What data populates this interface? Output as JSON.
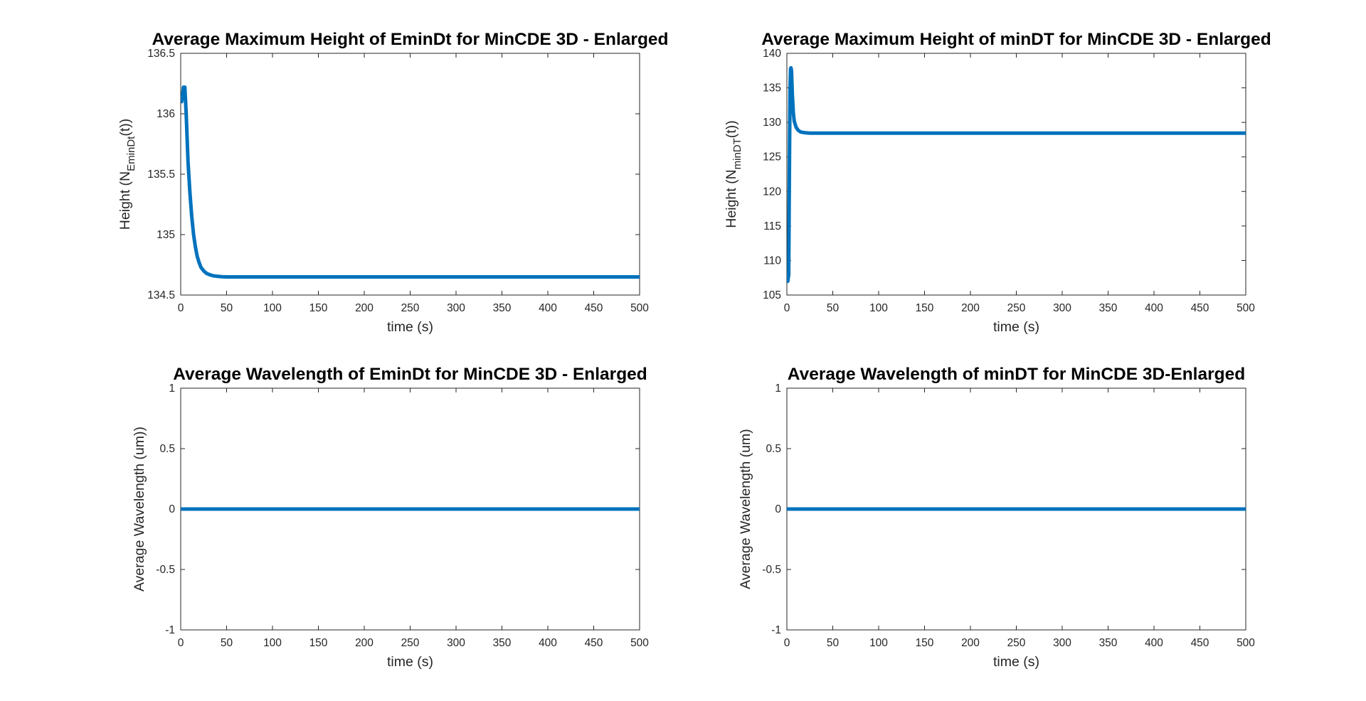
{
  "chart_data": [
    {
      "type": "line",
      "title": "Average Maximum Height of EminDt for MinCDE 3D - Enlarged",
      "xlabel": "time (s)",
      "ylabel": {
        "main": "Height (N",
        "sub": "EminDt",
        "tail": "(t))"
      },
      "xlim": [
        0,
        500
      ],
      "ylim": [
        134.5,
        136.5
      ],
      "xticks": [
        0,
        50,
        100,
        150,
        200,
        250,
        300,
        350,
        400,
        450,
        500
      ],
      "yticks": [
        134.5,
        135,
        135.5,
        136,
        136.5
      ],
      "line_color": "#0072BD",
      "series": [
        {
          "x": [
            0,
            1,
            2,
            3,
            4,
            4.5,
            5,
            6,
            7,
            8,
            10,
            12,
            14,
            16,
            18,
            20,
            22,
            25,
            28,
            31,
            35,
            40,
            45,
            50,
            60,
            80,
            100,
            150,
            200,
            300,
            400,
            500
          ],
          "values": [
            136.15,
            136.1,
            136.15,
            136.22,
            136.2,
            136.22,
            136.15,
            136.0,
            135.8,
            135.6,
            135.35,
            135.15,
            135.0,
            134.9,
            134.82,
            134.77,
            134.73,
            134.7,
            134.68,
            134.67,
            134.66,
            134.655,
            134.652,
            134.65,
            134.65,
            134.65,
            134.65,
            134.65,
            134.65,
            134.65,
            134.65,
            134.65
          ]
        }
      ]
    },
    {
      "type": "line",
      "title": "Average Maximum Height of minDT for MinCDE 3D - Enlarged",
      "xlabel": "time (s)",
      "ylabel": {
        "main": "Height (N",
        "sub": "minDT",
        "tail": "(t))"
      },
      "xlim": [
        0,
        500
      ],
      "ylim": [
        105,
        140
      ],
      "xticks": [
        0,
        50,
        100,
        150,
        200,
        250,
        300,
        350,
        400,
        450,
        500
      ],
      "yticks": [
        105,
        110,
        115,
        120,
        125,
        130,
        135,
        140
      ],
      "line_color": "#0072BD",
      "series": [
        {
          "x": [
            0,
            1,
            2,
            2.5,
            3,
            3.5,
            4,
            4.5,
            5,
            6,
            7,
            8,
            10,
            12,
            15,
            20,
            25,
            30,
            50,
            100,
            200,
            300,
            400,
            500
          ],
          "values": [
            107,
            107,
            108,
            118,
            128,
            135,
            137.8,
            137.9,
            137.5,
            134,
            131.5,
            130.2,
            129.3,
            128.9,
            128.6,
            128.5,
            128.45,
            128.45,
            128.45,
            128.45,
            128.45,
            128.45,
            128.45,
            128.45
          ]
        }
      ]
    },
    {
      "type": "line",
      "title": "Average Wavelength of EminDt for MinCDE 3D - Enlarged",
      "xlabel": "time (s)",
      "ylabel": {
        "main": "Average Wavelength (um))",
        "sub": "",
        "tail": ""
      },
      "xlim": [
        0,
        500
      ],
      "ylim": [
        -1,
        1
      ],
      "xticks": [
        0,
        50,
        100,
        150,
        200,
        250,
        300,
        350,
        400,
        450,
        500
      ],
      "yticks": [
        -1,
        -0.5,
        0,
        0.5,
        1
      ],
      "line_color": "#0072BD",
      "series": [
        {
          "x": [
            0,
            500
          ],
          "values": [
            0,
            0
          ]
        }
      ]
    },
    {
      "type": "line",
      "title": "Average Wavelength of minDT for MinCDE 3D-Enlarged",
      "xlabel": "time (s)",
      "ylabel": {
        "main": "Average Wavelength (um)",
        "sub": "",
        "tail": ""
      },
      "xlim": [
        0,
        500
      ],
      "ylim": [
        -1,
        1
      ],
      "xticks": [
        0,
        50,
        100,
        150,
        200,
        250,
        300,
        350,
        400,
        450,
        500
      ],
      "yticks": [
        -1,
        -0.5,
        0,
        0.5,
        1
      ],
      "line_color": "#0072BD",
      "series": [
        {
          "x": [
            0,
            500
          ],
          "values": [
            0,
            0
          ]
        }
      ]
    }
  ]
}
